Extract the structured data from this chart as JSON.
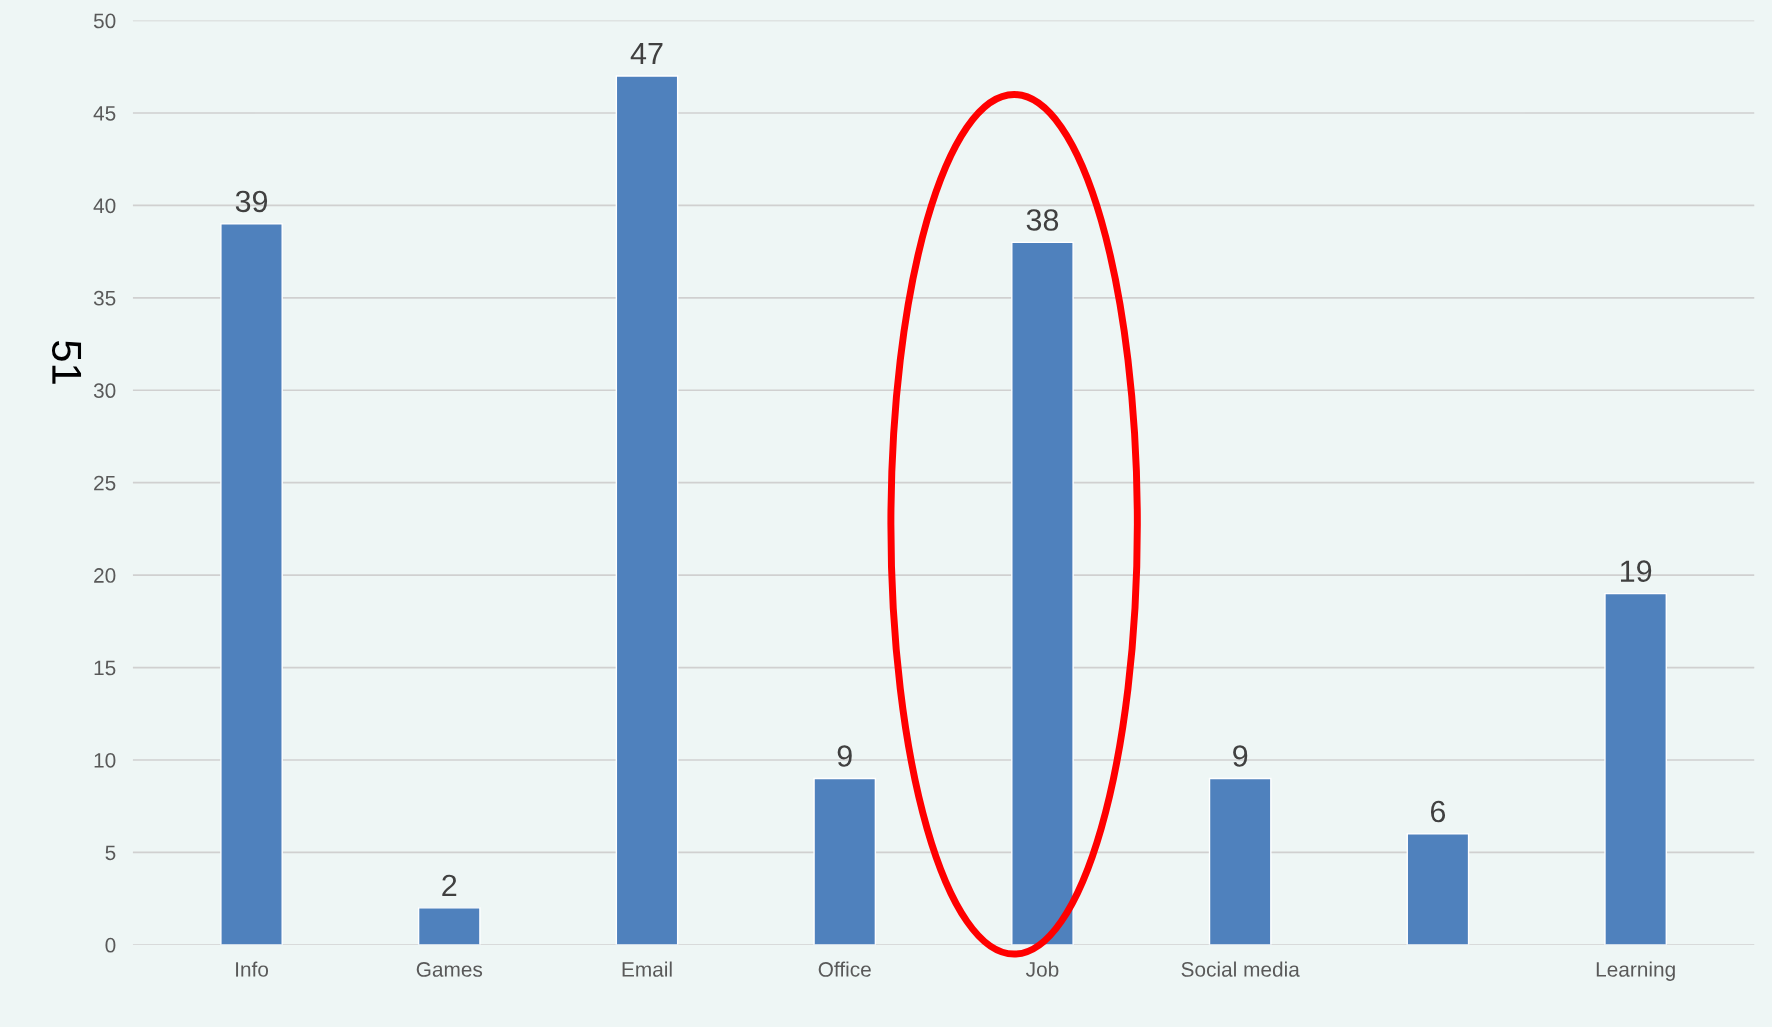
{
  "chart_data": {
    "type": "bar",
    "ylabel": "51",
    "categories": [
      "Info",
      "Games",
      "Email",
      "Office",
      "Job",
      "Social media",
      null,
      "Learning"
    ],
    "values": [
      39,
      2,
      47,
      9,
      38,
      9,
      6,
      19
    ],
    "color": "#4f81bd",
    "ylim": [
      0,
      50
    ],
    "yticks": [
      0,
      5,
      10,
      15,
      20,
      25,
      30,
      35,
      40,
      45,
      50
    ],
    "grid": "y",
    "data_labels": true
  }
}
